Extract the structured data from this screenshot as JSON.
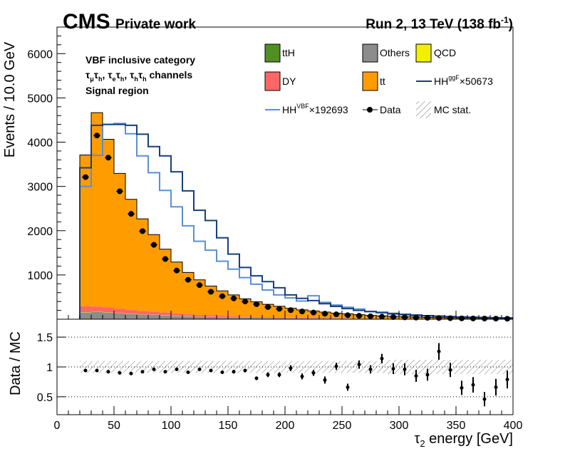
{
  "header": {
    "experiment": "CMS",
    "status": "Private work",
    "run_info": "Run 2, 13 TeV (138 fb",
    "run_info_sup": "-1",
    "run_info_close": ")"
  },
  "category": {
    "line1": "VBF inclusive category",
    "line2": "τ",
    "channels": [
      {
        "a": "μ",
        "b": "h"
      },
      {
        "a": "e",
        "b": "h"
      },
      {
        "a": "h",
        "b": "h"
      }
    ],
    "suffix": "channels",
    "line3": "Signal region"
  },
  "legend": {
    "tth": "ttH",
    "others": "Others",
    "qcd": "QCD",
    "dy": "DY",
    "tt": "tt",
    "hhggf": "HH",
    "hhggf_sup": "ggF",
    "hhggf_scale": "×50673",
    "hhvbf": "HH",
    "hhvbf_sup": "VBF",
    "hhvbf_scale": "×192693",
    "data": "Data",
    "mcstat": "MC stat."
  },
  "colors": {
    "tth": "#4f8f23",
    "others": "#8c8c8c",
    "qcd": "#f2ef00",
    "dy": "#ff6666",
    "tt": "#ff9c00",
    "hhggf": "#163f7b",
    "hhvbf": "#5a8fd6"
  },
  "chart_data": {
    "type": "histogram",
    "xlabel": "τ",
    "xlabel_sub": "2",
    "xlabel_rest": " energy [GeV]",
    "ylabel": "Events / 10.0 GeV",
    "ratio_ylabel": "Data / MC",
    "xlim": [
      0,
      400
    ],
    "ylim": [
      0,
      6600
    ],
    "ratio_ylim": [
      0.2,
      1.8
    ],
    "x_ticks": [
      "0",
      "50",
      "100",
      "150",
      "200",
      "250",
      "300",
      "350",
      "400"
    ],
    "y_ticks": [
      "1000",
      "2000",
      "3000",
      "4000",
      "5000",
      "6000"
    ],
    "ratio_ticks": [
      "0.5",
      "1",
      "1.5"
    ],
    "bin_edges": [
      20,
      30,
      40,
      50,
      60,
      70,
      80,
      90,
      100,
      110,
      120,
      130,
      140,
      150,
      160,
      170,
      180,
      190,
      200,
      210,
      220,
      230,
      240,
      250,
      260,
      270,
      280,
      290,
      300,
      310,
      320,
      330,
      340,
      350,
      360,
      370,
      380,
      390,
      400
    ],
    "tt": [
      3420,
      4380,
      3800,
      3060,
      2500,
      2080,
      1740,
      1430,
      1160,
      940,
      790,
      660,
      560,
      480,
      400,
      340,
      290,
      250,
      210,
      180,
      160,
      135,
      115,
      100,
      85,
      72,
      62,
      52,
      45,
      40,
      34,
      30,
      26,
      22,
      19,
      17,
      15,
      13
    ],
    "dy": [
      130,
      120,
      110,
      95,
      85,
      75,
      70,
      60,
      50,
      45,
      40,
      35,
      30,
      25,
      22,
      20,
      18,
      16,
      14,
      12,
      10,
      9,
      8,
      7,
      6,
      5,
      5,
      4,
      4,
      3,
      3,
      3,
      2,
      2,
      2,
      2,
      1,
      1
    ],
    "others": [
      150,
      155,
      145,
      130,
      115,
      105,
      95,
      85,
      75,
      65,
      55,
      50,
      45,
      40,
      35,
      30,
      27,
      24,
      21,
      18,
      16,
      14,
      12,
      11,
      10,
      9,
      8,
      7,
      6,
      5,
      5,
      4,
      4,
      3,
      3,
      3,
      2,
      2
    ],
    "tth": [
      6,
      6,
      5,
      5,
      4,
      4,
      4,
      3,
      3,
      3,
      2,
      2,
      2,
      2,
      2,
      1,
      1,
      1,
      1,
      1,
      1,
      1,
      1,
      1,
      0,
      0,
      0,
      0,
      0,
      0,
      0,
      0,
      0,
      0,
      0,
      0,
      0,
      0
    ],
    "qcd": [
      5,
      5,
      5,
      4,
      4,
      4,
      3,
      3,
      3,
      3,
      2,
      2,
      2,
      2,
      2,
      2,
      1,
      1,
      1,
      1,
      1,
      1,
      1,
      1,
      1,
      1,
      1,
      1,
      0,
      0,
      0,
      0,
      0,
      0,
      0,
      0,
      0,
      0
    ],
    "hh_ggf": [
      3420,
      4380,
      4400,
      4400,
      4380,
      4180,
      3900,
      3690,
      3330,
      2900,
      2460,
      2230,
      1840,
      1470,
      1170,
      980,
      850,
      710,
      550,
      470,
      420,
      350,
      290,
      240,
      200,
      175,
      155,
      130,
      110,
      95,
      80,
      70,
      60,
      50,
      45,
      40,
      35,
      30
    ],
    "hh_vbf": [
      3000,
      3700,
      4400,
      4420,
      4190,
      3690,
      3310,
      2910,
      2540,
      2110,
      1760,
      1560,
      1310,
      1130,
      940,
      790,
      660,
      550,
      480,
      410,
      530,
      380,
      320,
      270,
      230,
      170,
      140,
      110,
      95,
      80,
      75,
      65,
      55,
      50,
      45,
      40,
      35,
      30
    ],
    "data_x": [
      25,
      35,
      45,
      55,
      65,
      75,
      85,
      95,
      105,
      115,
      125,
      135,
      145,
      155,
      165,
      175,
      185,
      195,
      205,
      215,
      225,
      235,
      245,
      255,
      265,
      275,
      285,
      295,
      305,
      315,
      325,
      335,
      345,
      355,
      365,
      375,
      385,
      395
    ],
    "data_y": [
      3210,
      4150,
      3650,
      2890,
      2380,
      1990,
      1680,
      1360,
      1100,
      890,
      770,
      620,
      520,
      470,
      400,
      340,
      275,
      235,
      205,
      175,
      150,
      125,
      110,
      90,
      78,
      66,
      56,
      48,
      41,
      36,
      31,
      27,
      23,
      19,
      17,
      15,
      13,
      11
    ],
    "ratio": [
      0.94,
      0.94,
      0.92,
      0.9,
      0.89,
      0.92,
      0.96,
      0.92,
      0.96,
      0.91,
      0.96,
      0.94,
      0.91,
      0.92,
      0.94,
      0.81,
      0.87,
      0.87,
      0.98,
      0.84,
      0.9,
      0.78,
      1.01,
      0.66,
      1.04,
      0.96,
      1.14,
      0.97,
      0.96,
      0.85,
      0.87,
      1.26,
      0.95,
      0.65,
      0.7,
      0.46,
      0.66,
      0.79
    ],
    "ratio_err": [
      0.02,
      0.02,
      0.02,
      0.02,
      0.02,
      0.02,
      0.02,
      0.02,
      0.02,
      0.02,
      0.02,
      0.02,
      0.02,
      0.03,
      0.03,
      0.03,
      0.04,
      0.04,
      0.05,
      0.05,
      0.05,
      0.06,
      0.06,
      0.06,
      0.07,
      0.07,
      0.08,
      0.09,
      0.1,
      0.1,
      0.1,
      0.14,
      0.12,
      0.12,
      0.13,
      0.12,
      0.14,
      0.15
    ],
    "mc_stat_band": [
      0.1,
      0.1,
      0.1,
      0.1,
      0.1,
      0.1,
      0.1,
      0.1,
      0.1,
      0.1,
      0.1,
      0.1,
      0.1,
      0.1,
      0.1,
      0.1,
      0.1,
      0.1,
      0.1,
      0.1,
      0.1,
      0.1,
      0.1,
      0.1,
      0.1,
      0.1,
      0.1,
      0.12,
      0.12,
      0.12,
      0.12,
      0.12,
      0.12,
      0.12,
      0.12,
      0.12,
      0.12,
      0.12
    ]
  }
}
